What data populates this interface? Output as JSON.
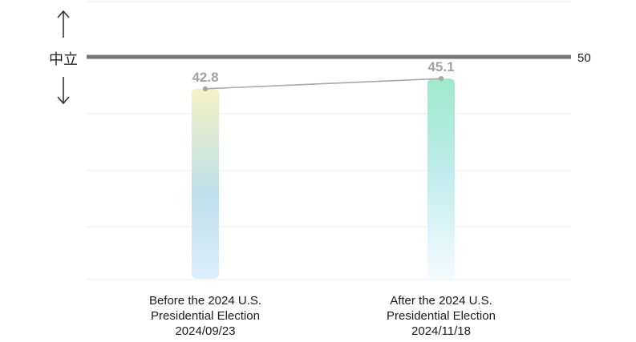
{
  "chart_data": {
    "type": "bar",
    "categories": [
      [
        "Before the 2024 U.S.",
        "Presidential Election",
        "2024/09/23"
      ],
      [
        "After the 2024 U.S.",
        "Presidential Election",
        "2024/11/18"
      ]
    ],
    "values": [
      42.8,
      45.1
    ],
    "value_labels": [
      "42.8",
      "45.1"
    ],
    "reference_line": {
      "value": 50,
      "label": "50",
      "color": "#777777"
    },
    "side_label": "中立",
    "ylim": [
      0,
      55
    ],
    "grid": true,
    "connector_line": true,
    "colors": {
      "bar1_top": "#f3f1c4",
      "bar1_bottom": "#dceefb",
      "bar2_top": "#9feacb",
      "bar2_bottom": "#f5fbff",
      "connector": "#a8a8a8",
      "value_label": "#a3a3a3",
      "grid": "#ececec"
    }
  }
}
